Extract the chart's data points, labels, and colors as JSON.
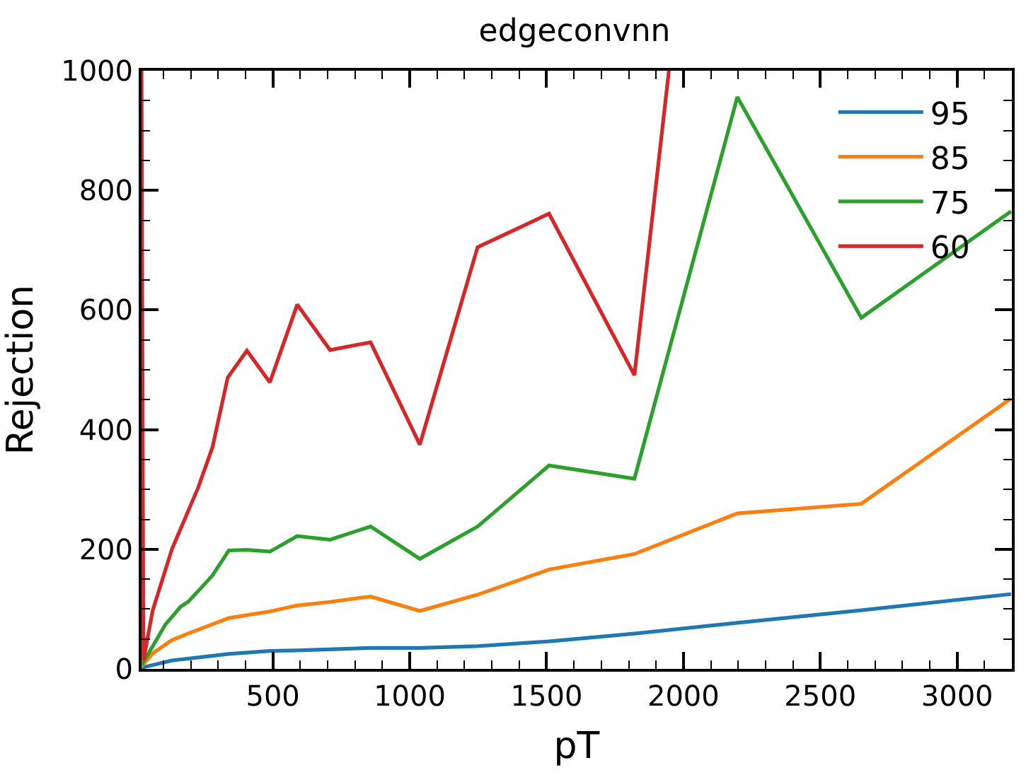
{
  "chart_data": {
    "type": "line",
    "title": "edgeconvnn",
    "xlabel": "pT",
    "ylabel": "Rejection",
    "xlim": [
      20,
      3200
    ],
    "ylim": [
      0,
      1000
    ],
    "xticks": [
      {
        "value": 100,
        "label": null
      },
      {
        "value": 200,
        "label": null
      },
      {
        "value": 300,
        "label": null
      },
      {
        "value": 400,
        "label": null
      },
      500,
      {
        "value": 600,
        "label": null
      },
      {
        "value": 700,
        "label": null
      },
      {
        "value": 800,
        "label": null
      },
      {
        "value": 900,
        "label": null
      },
      1000,
      {
        "value": 1100,
        "label": null
      },
      {
        "value": 1200,
        "label": null
      },
      {
        "value": 1300,
        "label": null
      },
      {
        "value": 1400,
        "label": null
      },
      1500,
      {
        "value": 1600,
        "label": null
      },
      {
        "value": 1700,
        "label": null
      },
      {
        "value": 1800,
        "label": null
      },
      {
        "value": 1900,
        "label": null
      },
      2000,
      {
        "value": 2100,
        "label": null
      },
      {
        "value": 2200,
        "label": null
      },
      {
        "value": 2300,
        "label": null
      },
      {
        "value": 2400,
        "label": null
      },
      2500,
      {
        "value": 2600,
        "label": null
      },
      {
        "value": 2700,
        "label": null
      },
      {
        "value": 2800,
        "label": null
      },
      {
        "value": 2900,
        "label": null
      },
      3000,
      {
        "value": 3100,
        "label": null
      }
    ],
    "yticks": [
      0,
      {
        "value": 50,
        "label": null
      },
      {
        "value": 100,
        "label": null
      },
      {
        "value": 150,
        "label": null
      },
      200,
      {
        "value": 250,
        "label": null
      },
      {
        "value": 300,
        "label": null
      },
      {
        "value": 350,
        "label": null
      },
      400,
      {
        "value": 450,
        "label": null
      },
      {
        "value": 500,
        "label": null
      },
      {
        "value": 550,
        "label": null
      },
      600,
      {
        "value": 650,
        "label": null
      },
      {
        "value": 700,
        "label": null
      },
      {
        "value": 750,
        "label": null
      },
      800,
      {
        "value": 850,
        "label": null
      },
      {
        "value": 900,
        "label": null
      },
      {
        "value": 950,
        "label": null
      },
      1000
    ],
    "legend": "top right",
    "marker": "none",
    "line_style": "solid",
    "series": [
      {
        "name": "95",
        "color": "#1f77b4",
        "x": [
          20,
          131,
          339,
          489,
          589,
          857,
          1037,
          1248,
          1509,
          1821,
          2197,
          2650,
          3197
        ],
        "values": [
          2,
          14,
          25,
          30,
          31,
          35,
          35,
          38,
          46,
          59,
          77,
          98,
          125
        ]
      },
      {
        "name": "85",
        "color": "#ff7f0e",
        "x": [
          20,
          61,
          131,
          190,
          339,
          489,
          589,
          709,
          857,
          1037,
          1248,
          1509,
          1821,
          2197,
          2650,
          3197
        ],
        "values": [
          4,
          26,
          48,
          59,
          85,
          96,
          106,
          112,
          121,
          97,
          124,
          166,
          192,
          260,
          276,
          452
        ]
      },
      {
        "name": "75",
        "color": "#2ca02c",
        "x": [
          20,
          61,
          107,
          163,
          190,
          227,
          279,
          339,
          403,
          489,
          589,
          709,
          857,
          1037,
          1248,
          1509,
          1821,
          2197,
          2650,
          3197
        ],
        "values": [
          6,
          38,
          74,
          104,
          112,
          130,
          156,
          198,
          199,
          196,
          222,
          216,
          238,
          184,
          238,
          340,
          318,
          956,
          587,
          765
        ]
      },
      {
        "name": "60",
        "color": "#d62728",
        "x": [
          20,
          27,
          61,
          131,
          227,
          279,
          335,
          405,
          489,
          589,
          709,
          857,
          1037,
          1248,
          1509,
          1821,
          1947
        ],
        "values": [
          1000,
          14,
          98,
          200,
          303,
          370,
          487,
          532,
          479,
          609,
          533,
          546,
          375,
          705,
          761,
          491,
          1000
        ]
      }
    ]
  }
}
